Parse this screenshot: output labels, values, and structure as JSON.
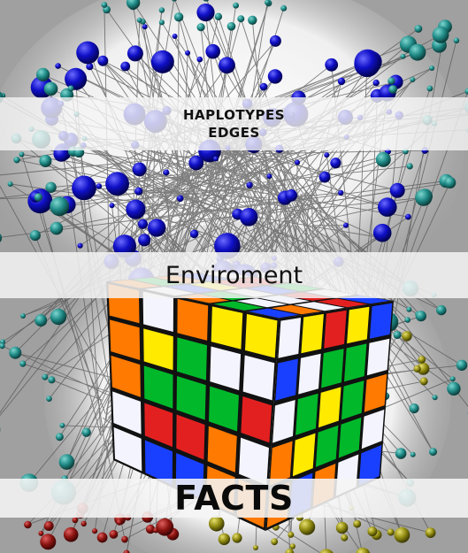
{
  "top_band": {
    "line1": "HAPLOTYPES",
    "line2": "EDGES"
  },
  "middle_band": {
    "label": "Enviroment"
  },
  "bottom_band": {
    "label": "FACTS"
  },
  "colors": {
    "network_nodes_top": "#0a0ab0",
    "network_nodes_side": "#1f8a86",
    "network_nodes_bottom_left": "#8b1410",
    "network_nodes_bottom_right": "#8f8a10",
    "edges": "#555555",
    "cube_face": "#111111"
  },
  "icons": [
    "haplotype-network-graphic",
    "rubiks-cube-graphic"
  ]
}
